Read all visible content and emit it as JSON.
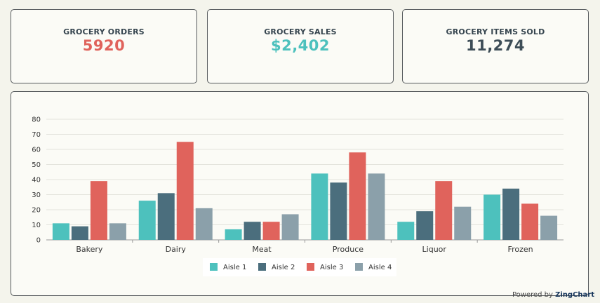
{
  "kpis": {
    "orders": {
      "title": "GROCERY ORDERS",
      "value": "5920",
      "color": "#e0635c"
    },
    "sales": {
      "title": "GROCERY SALES",
      "value": "$2,402",
      "color": "#4dc1bd"
    },
    "items": {
      "title": "GROCERY ITEMS SOLD",
      "value": "11,274",
      "color": "#3d4d57"
    }
  },
  "chart_data": {
    "type": "bar",
    "categories": [
      "Bakery",
      "Dairy",
      "Meat",
      "Produce",
      "Liquor",
      "Frozen"
    ],
    "series": [
      {
        "name": "Aisle 1",
        "color": "#4dc1bd",
        "values": [
          11,
          26,
          7,
          44,
          12,
          30
        ]
      },
      {
        "name": "Aisle 2",
        "color": "#4b6e7d",
        "values": [
          9,
          31,
          12,
          38,
          19,
          34
        ]
      },
      {
        "name": "Aisle 3",
        "color": "#e0635c",
        "values": [
          39,
          65,
          12,
          58,
          39,
          24
        ]
      },
      {
        "name": "Aisle 4",
        "color": "#8ba0aa",
        "values": [
          11,
          21,
          17,
          44,
          22,
          16
        ]
      }
    ],
    "ylim": [
      0,
      80
    ],
    "yticks": [
      0,
      10,
      20,
      30,
      40,
      50,
      60,
      70,
      80
    ],
    "grid": true,
    "legend": "bottom-center"
  },
  "footer": {
    "powered_prefix": "Powered by",
    "powered_brand": "ZingChart"
  }
}
